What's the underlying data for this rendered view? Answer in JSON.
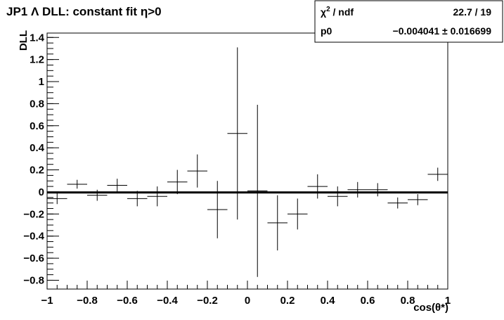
{
  "chart_data": {
    "type": "scatter",
    "title": {
      "prefix": "JP1 ",
      "symbol": "Λ",
      "middle": " DLL: constant fit  ",
      "eta_symbol": "η",
      "suffix": ">0"
    },
    "xlabel": "cos(θ*)",
    "ylabel": "DLL",
    "xlim": [
      -1,
      1
    ],
    "ylim": [
      -0.88,
      1.44
    ],
    "x_ticks": [
      -1,
      -0.8,
      -0.6,
      -0.4,
      -0.2,
      0,
      0.2,
      0.4,
      0.6,
      0.8,
      1
    ],
    "x_tick_labels": [
      "−1",
      "−0.8",
      "−0.6",
      "−0.4",
      "−0.2",
      "0",
      "0.2",
      "0.4",
      "0.6",
      "0.8",
      "1"
    ],
    "y_ticks": [
      -0.8,
      -0.6,
      -0.4,
      -0.2,
      0,
      0.2,
      0.4,
      0.6,
      0.8,
      1,
      1.2,
      1.4
    ],
    "y_tick_labels": [
      "−0.8",
      "−0.6",
      "−0.4",
      "−0.2",
      "0",
      "0.2",
      "0.4",
      "0.6",
      "0.8",
      "1",
      "1.2",
      "1.4"
    ],
    "grid": false,
    "series": [
      {
        "x": [
          -0.95,
          -0.85,
          -0.75,
          -0.65,
          -0.55,
          -0.45,
          -0.35,
          -0.25,
          -0.15,
          -0.05,
          0.05,
          0.15,
          0.25,
          0.35,
          0.45,
          0.55,
          0.65,
          0.75,
          0.85,
          0.95
        ],
        "y": [
          -0.06,
          0.07,
          -0.03,
          0.06,
          -0.06,
          -0.04,
          0.09,
          0.19,
          -0.16,
          0.53,
          0.01,
          -0.28,
          -0.2,
          0.05,
          -0.04,
          0.02,
          0.02,
          -0.1,
          -0.07,
          0.16
        ],
        "xerr": 0.05,
        "yerr": [
          0.05,
          0.04,
          0.05,
          0.06,
          0.07,
          0.09,
          0.11,
          0.15,
          0.26,
          0.78,
          0.78,
          0.25,
          0.14,
          0.11,
          0.09,
          0.07,
          0.06,
          0.05,
          0.05,
          0.06
        ]
      }
    ],
    "fit": {
      "type": "constant",
      "value": -0.004041
    },
    "stats": {
      "row1_label_prefix": "χ",
      "row1_label_sup": "2",
      "row1_label_suffix": " / ndf",
      "row1_value": "22.7 / 19",
      "row2_label": "p0",
      "row2_value": "−0.004041 ± 0.016699"
    }
  }
}
